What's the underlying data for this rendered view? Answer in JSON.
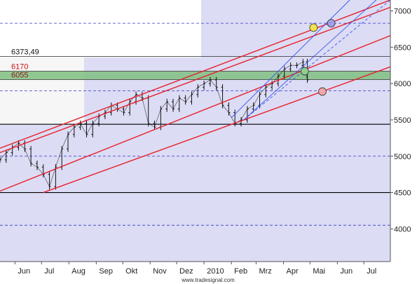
{
  "colors": {
    "panel_bg": "#dcdcf4",
    "white_zone": "#ffffff",
    "light_gray_zone": "#f6f6f6",
    "green_band": "#7fbf7f",
    "channel_red": "#e8202a",
    "trend_blue": "#3355ee",
    "grid_dash": "#3333cc",
    "level_line": "#000000",
    "price_label_red": "#d01010",
    "price_label_dark": "#8a1a1a",
    "candles": "#111111",
    "marker_yellow": "#f2e24a",
    "marker_blue": "#9f9fe8",
    "marker_red": "#f4a6a6",
    "marker_green": "#8ecf8e"
  },
  "source": "www.tradesignal.com",
  "chart_data": {
    "type": "candlestick",
    "title": "",
    "xlabel": "",
    "ylabel": "",
    "ylim": [
      3550,
      7150
    ],
    "y_ticks": [
      "4000",
      "4500",
      "5000",
      "5500",
      "6000",
      "6500",
      "7000"
    ],
    "x_labels": [
      "Jun",
      "Jul",
      "Aug",
      "Sep",
      "Okt",
      "Nov",
      "Dez",
      "2010",
      "Feb",
      "Mrz",
      "Apr",
      "Mai",
      "Jun",
      "Jul"
    ],
    "x_label_months": [
      0,
      1,
      2,
      3,
      4,
      5,
      6,
      7,
      8,
      9,
      10,
      11,
      12,
      13
    ],
    "x_start": "2009-05-15",
    "x_end": "2010-07-31",
    "grid": "dashed horizontal",
    "dashed_levels": [
      4050,
      5000,
      5900,
      6830
    ],
    "solid_levels": [
      4500,
      5440
    ],
    "box_levels": [
      6373.49,
      6170,
      6055
    ],
    "level_labels": [
      "6373,49",
      "6170",
      "6055"
    ],
    "green_band": [
      6055,
      6170
    ],
    "price_series": {
      "name": "",
      "points": [
        [
          "2009-05-15",
          4950
        ],
        [
          "2009-05-22",
          5050
        ],
        [
          "2009-05-29",
          5120
        ],
        [
          "2009-06-05",
          5180
        ],
        [
          "2009-06-12",
          5100
        ],
        [
          "2009-06-19",
          4900
        ],
        [
          "2009-06-26",
          4850
        ],
        [
          "2009-07-03",
          4750
        ],
        [
          "2009-07-10",
          4580
        ],
        [
          "2009-07-17",
          4850
        ],
        [
          "2009-07-24",
          5100
        ],
        [
          "2009-07-31",
          5300
        ],
        [
          "2009-08-07",
          5400
        ],
        [
          "2009-08-14",
          5450
        ],
        [
          "2009-08-21",
          5300
        ],
        [
          "2009-08-28",
          5450
        ],
        [
          "2009-09-04",
          5550
        ],
        [
          "2009-09-11",
          5600
        ],
        [
          "2009-09-18",
          5700
        ],
        [
          "2009-09-25",
          5650
        ],
        [
          "2009-10-02",
          5600
        ],
        [
          "2009-10-09",
          5750
        ],
        [
          "2009-10-16",
          5850
        ],
        [
          "2009-10-23",
          5800
        ],
        [
          "2009-10-30",
          5450
        ],
        [
          "2009-11-06",
          5400
        ],
        [
          "2009-11-13",
          5650
        ],
        [
          "2009-11-20",
          5750
        ],
        [
          "2009-11-27",
          5650
        ],
        [
          "2009-12-04",
          5800
        ],
        [
          "2009-12-11",
          5750
        ],
        [
          "2009-12-18",
          5850
        ],
        [
          "2009-12-25",
          5950
        ],
        [
          "2010-01-01",
          6000
        ],
        [
          "2010-01-08",
          6050
        ],
        [
          "2010-01-15",
          5950
        ],
        [
          "2010-01-22",
          5700
        ],
        [
          "2010-01-29",
          5600
        ],
        [
          "2010-02-05",
          5450
        ],
        [
          "2010-02-12",
          5500
        ],
        [
          "2010-02-19",
          5650
        ],
        [
          "2010-02-26",
          5700
        ],
        [
          "2010-03-05",
          5850
        ],
        [
          "2010-03-12",
          5950
        ],
        [
          "2010-03-19",
          6000
        ],
        [
          "2010-03-26",
          6100
        ],
        [
          "2010-04-02",
          6200
        ],
        [
          "2010-04-09",
          6250
        ],
        [
          "2010-04-16",
          6250
        ],
        [
          "2010-04-23",
          6300
        ],
        [
          "2010-04-28",
          6050
        ]
      ]
    },
    "channel_lines": [
      {
        "from": [
          "2009-05-15",
          5110
        ],
        "to": [
          "2010-07-31",
          7150
        ]
      },
      {
        "from": [
          "2009-05-15",
          5050
        ],
        "to": [
          "2010-07-31",
          7050
        ]
      },
      {
        "from": [
          "2009-05-15",
          4520
        ],
        "to": [
          "2010-07-31",
          6660
        ]
      },
      {
        "from": [
          "2009-07-03",
          4500
        ],
        "to": [
          "2010-07-31",
          6230
        ]
      }
    ],
    "trend_lines": [
      {
        "from": [
          "2010-02-15",
          5500
        ],
        "to": [
          "2010-07-15",
          7150
        ],
        "style": "solid"
      },
      {
        "from": [
          "2010-02-15",
          5500
        ],
        "to": [
          "2010-07-31",
          7150
        ],
        "style": "dashed"
      },
      {
        "from": [
          "2010-02-01",
          5530
        ],
        "to": [
          "2010-06-15",
          7150
        ],
        "style": "solid"
      }
    ],
    "markers": [
      {
        "x": "2010-05-05",
        "y": 6770,
        "color": "yellow"
      },
      {
        "x": "2010-05-25",
        "y": 6830,
        "color": "blue"
      },
      {
        "x": "2010-05-15",
        "y": 5890,
        "color": "red"
      },
      {
        "x": "2010-04-25",
        "y": 6170,
        "color": "green"
      }
    ]
  }
}
